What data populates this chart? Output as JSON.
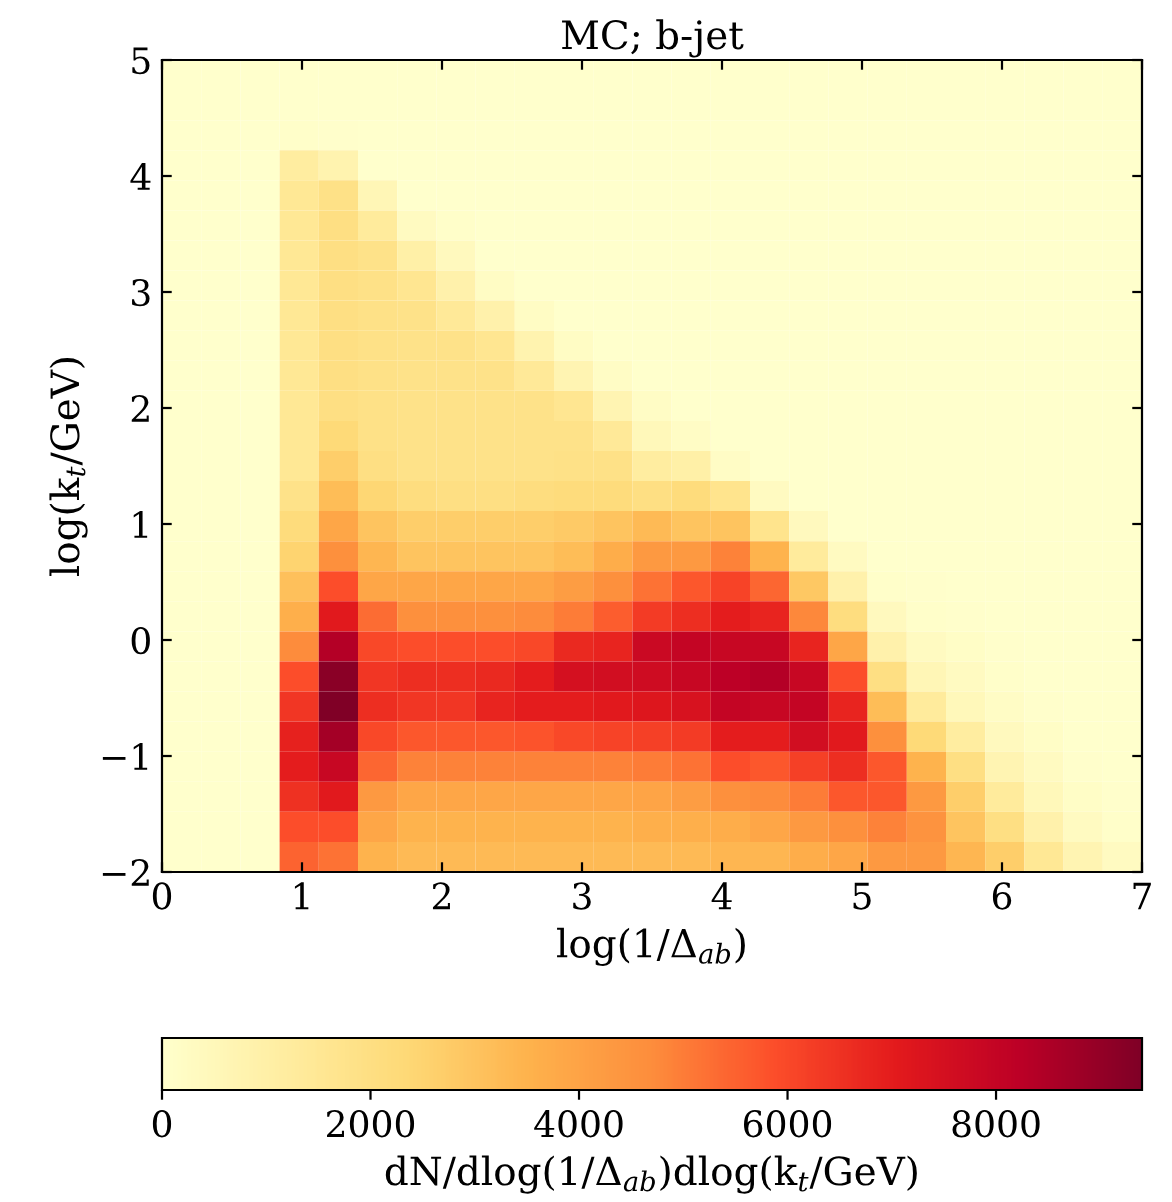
{
  "chart_data": {
    "type": "heatmap",
    "title": "MC; b-jet",
    "xlabel": "log(1/Δ$_{ab}$)",
    "ylabel": "log(k$_{t}$/GeV)",
    "clabel": "dN/dlog(1/Δ$_{ab}$)dlog(k$_{t}$/GeV)",
    "x": [
      0.14,
      0.42,
      0.7,
      0.98,
      1.26,
      1.54,
      1.82,
      2.1,
      2.38,
      2.66,
      2.94,
      3.22,
      3.5,
      3.78,
      4.06,
      4.34,
      4.62,
      4.9,
      5.18,
      5.46,
      5.74,
      6.02,
      6.3,
      6.58,
      6.86
    ],
    "y": [
      4.87,
      4.611,
      4.352,
      4.093,
      3.833,
      3.574,
      3.315,
      3.056,
      2.796,
      2.537,
      2.278,
      2.019,
      1.759,
      1.5,
      1.241,
      0.981,
      0.722,
      0.463,
      0.204,
      -0.056,
      -0.315,
      -0.574,
      -0.833,
      -1.093,
      -1.352,
      -1.611,
      -1.87
    ],
    "xlim": [
      0,
      7
    ],
    "xticks": [
      0,
      1,
      2,
      3,
      4,
      5,
      6,
      7
    ],
    "ylim": [
      -2,
      5
    ],
    "yticks": [
      {
        "value": -2,
        "label": "−2"
      },
      {
        "value": -1,
        "label": "−1"
      },
      0,
      1,
      2,
      3,
      4,
      5
    ],
    "clim": [
      0,
      9400
    ],
    "cticks": [
      0,
      2000,
      4000,
      6000,
      8000
    ],
    "grid": false,
    "cells": [
      [
        0,
        0,
        0,
        0,
        0,
        0,
        0,
        0,
        0,
        0,
        0,
        0,
        0,
        0,
        0,
        0,
        0,
        0,
        0,
        0,
        0,
        0,
        0,
        0,
        0
      ],
      [
        0,
        0,
        0,
        0,
        0,
        0,
        0,
        0,
        0,
        0,
        0,
        0,
        0,
        0,
        0,
        0,
        0,
        0,
        0,
        0,
        0,
        0,
        0,
        0,
        0
      ],
      [
        0,
        0,
        0,
        100,
        50,
        0,
        0,
        0,
        0,
        0,
        0,
        0,
        0,
        0,
        0,
        0,
        0,
        0,
        0,
        0,
        0,
        0,
        0,
        0,
        0
      ],
      [
        0,
        0,
        0,
        1200,
        800,
        0,
        0,
        0,
        0,
        0,
        0,
        0,
        0,
        0,
        0,
        0,
        0,
        0,
        0,
        0,
        0,
        0,
        0,
        0,
        0
      ],
      [
        0,
        0,
        0,
        1500,
        1900,
        600,
        0,
        0,
        0,
        0,
        0,
        0,
        0,
        0,
        0,
        0,
        0,
        0,
        0,
        0,
        0,
        0,
        0,
        0,
        0
      ],
      [
        0,
        0,
        0,
        1500,
        2000,
        1300,
        300,
        100,
        0,
        0,
        0,
        0,
        0,
        0,
        0,
        0,
        0,
        0,
        0,
        0,
        0,
        0,
        0,
        0,
        0
      ],
      [
        0,
        0,
        0,
        1500,
        2000,
        1800,
        1000,
        400,
        0,
        0,
        0,
        0,
        0,
        0,
        0,
        0,
        0,
        0,
        0,
        0,
        0,
        0,
        0,
        0,
        0
      ],
      [
        0,
        0,
        0,
        1500,
        2000,
        1900,
        1600,
        900,
        250,
        0,
        0,
        0,
        0,
        0,
        0,
        0,
        0,
        0,
        0,
        0,
        0,
        0,
        0,
        0,
        0
      ],
      [
        0,
        0,
        0,
        1500,
        2000,
        1900,
        1800,
        1400,
        900,
        250,
        0,
        0,
        0,
        0,
        0,
        0,
        0,
        0,
        0,
        0,
        0,
        0,
        0,
        0,
        0
      ],
      [
        0,
        0,
        0,
        1500,
        2000,
        1900,
        1800,
        1800,
        1600,
        800,
        250,
        0,
        0,
        0,
        0,
        0,
        0,
        0,
        0,
        0,
        0,
        0,
        0,
        0,
        0
      ],
      [
        0,
        0,
        0,
        1500,
        2000,
        1900,
        1800,
        1800,
        1800,
        1400,
        700,
        200,
        0,
        0,
        0,
        0,
        0,
        0,
        0,
        0,
        0,
        0,
        0,
        0,
        0
      ],
      [
        0,
        0,
        0,
        1500,
        2000,
        1900,
        1800,
        1800,
        1800,
        1800,
        1600,
        700,
        200,
        0,
        0,
        0,
        0,
        0,
        0,
        0,
        0,
        0,
        0,
        0,
        0
      ],
      [
        0,
        0,
        0,
        1500,
        2300,
        1900,
        1800,
        1800,
        1800,
        1800,
        1800,
        1400,
        500,
        200,
        0,
        0,
        0,
        0,
        0,
        0,
        0,
        0,
        0,
        0,
        0
      ],
      [
        0,
        0,
        0,
        1500,
        2700,
        2000,
        1800,
        1800,
        1800,
        1800,
        1900,
        1900,
        1200,
        1000,
        200,
        0,
        0,
        0,
        0,
        0,
        0,
        0,
        0,
        0,
        0
      ],
      [
        0,
        0,
        0,
        1800,
        3200,
        2400,
        2100,
        2000,
        2000,
        2100,
        2200,
        2200,
        2000,
        2200,
        1700,
        300,
        0,
        0,
        0,
        0,
        0,
        0,
        0,
        0,
        0
      ],
      [
        0,
        0,
        0,
        2200,
        3900,
        3000,
        2700,
        2700,
        2700,
        2700,
        2800,
        3000,
        3300,
        3000,
        3000,
        1700,
        400,
        0,
        0,
        0,
        0,
        0,
        0,
        0,
        0
      ],
      [
        0,
        0,
        0,
        2500,
        4600,
        3400,
        3000,
        3000,
        3000,
        3000,
        3200,
        3700,
        4300,
        4300,
        4900,
        3500,
        1300,
        300,
        0,
        0,
        0,
        0,
        0,
        0,
        0
      ],
      [
        0,
        0,
        0,
        3100,
        5900,
        3900,
        3900,
        3900,
        3900,
        3900,
        4200,
        4600,
        5200,
        5700,
        6100,
        5400,
        2900,
        900,
        100,
        50,
        0,
        0,
        0,
        0,
        0
      ],
      [
        0,
        0,
        0,
        3600,
        7100,
        5300,
        4600,
        4600,
        4600,
        4700,
        5000,
        5600,
        6300,
        6600,
        7000,
        6800,
        4800,
        2100,
        400,
        100,
        50,
        0,
        0,
        0,
        0
      ],
      [
        0,
        0,
        0,
        4700,
        8400,
        6000,
        5900,
        5900,
        5900,
        6000,
        6700,
        6800,
        7800,
        8000,
        7900,
        7900,
        6800,
        3900,
        900,
        300,
        150,
        50,
        0,
        0,
        0
      ],
      [
        0,
        0,
        0,
        5900,
        9200,
        6400,
        6600,
        6600,
        6700,
        7000,
        7500,
        7600,
        7700,
        7900,
        8200,
        8400,
        7900,
        5900,
        2000,
        600,
        300,
        100,
        0,
        0,
        0
      ],
      [
        0,
        0,
        0,
        6400,
        9400,
        6600,
        6400,
        6400,
        6800,
        7000,
        7000,
        7100,
        7200,
        7400,
        8000,
        7900,
        8000,
        6800,
        3200,
        1300,
        500,
        200,
        50,
        0,
        0
      ],
      [
        0,
        0,
        0,
        6900,
        8700,
        6000,
        5700,
        5700,
        5700,
        5800,
        6000,
        6100,
        6200,
        6300,
        7000,
        7000,
        7600,
        7100,
        4600,
        2300,
        1200,
        400,
        150,
        0,
        0
      ],
      [
        0,
        0,
        0,
        7000,
        7900,
        5400,
        4900,
        4900,
        4900,
        4900,
        4900,
        4900,
        5000,
        5200,
        5900,
        5700,
        6200,
        6600,
        5700,
        3500,
        2000,
        700,
        300,
        50,
        0
      ],
      [
        0,
        0,
        0,
        6500,
        7100,
        4300,
        3900,
        3900,
        3900,
        3900,
        3900,
        3900,
        4000,
        4200,
        4600,
        4700,
        5000,
        5700,
        5700,
        4300,
        2700,
        1300,
        500,
        150,
        50
      ],
      [
        0,
        0,
        0,
        5900,
        5900,
        3900,
        3500,
        3500,
        3500,
        3500,
        3500,
        3500,
        3600,
        3600,
        3700,
        3900,
        4300,
        4600,
        4900,
        4500,
        3000,
        2000,
        900,
        300,
        100
      ],
      [
        0,
        0,
        0,
        5500,
        5200,
        3500,
        3300,
        3300,
        3300,
        3300,
        3300,
        3300,
        3300,
        3300,
        3400,
        3400,
        3700,
        3900,
        4300,
        4300,
        3400,
        2700,
        1500,
        700,
        300
      ]
    ]
  }
}
